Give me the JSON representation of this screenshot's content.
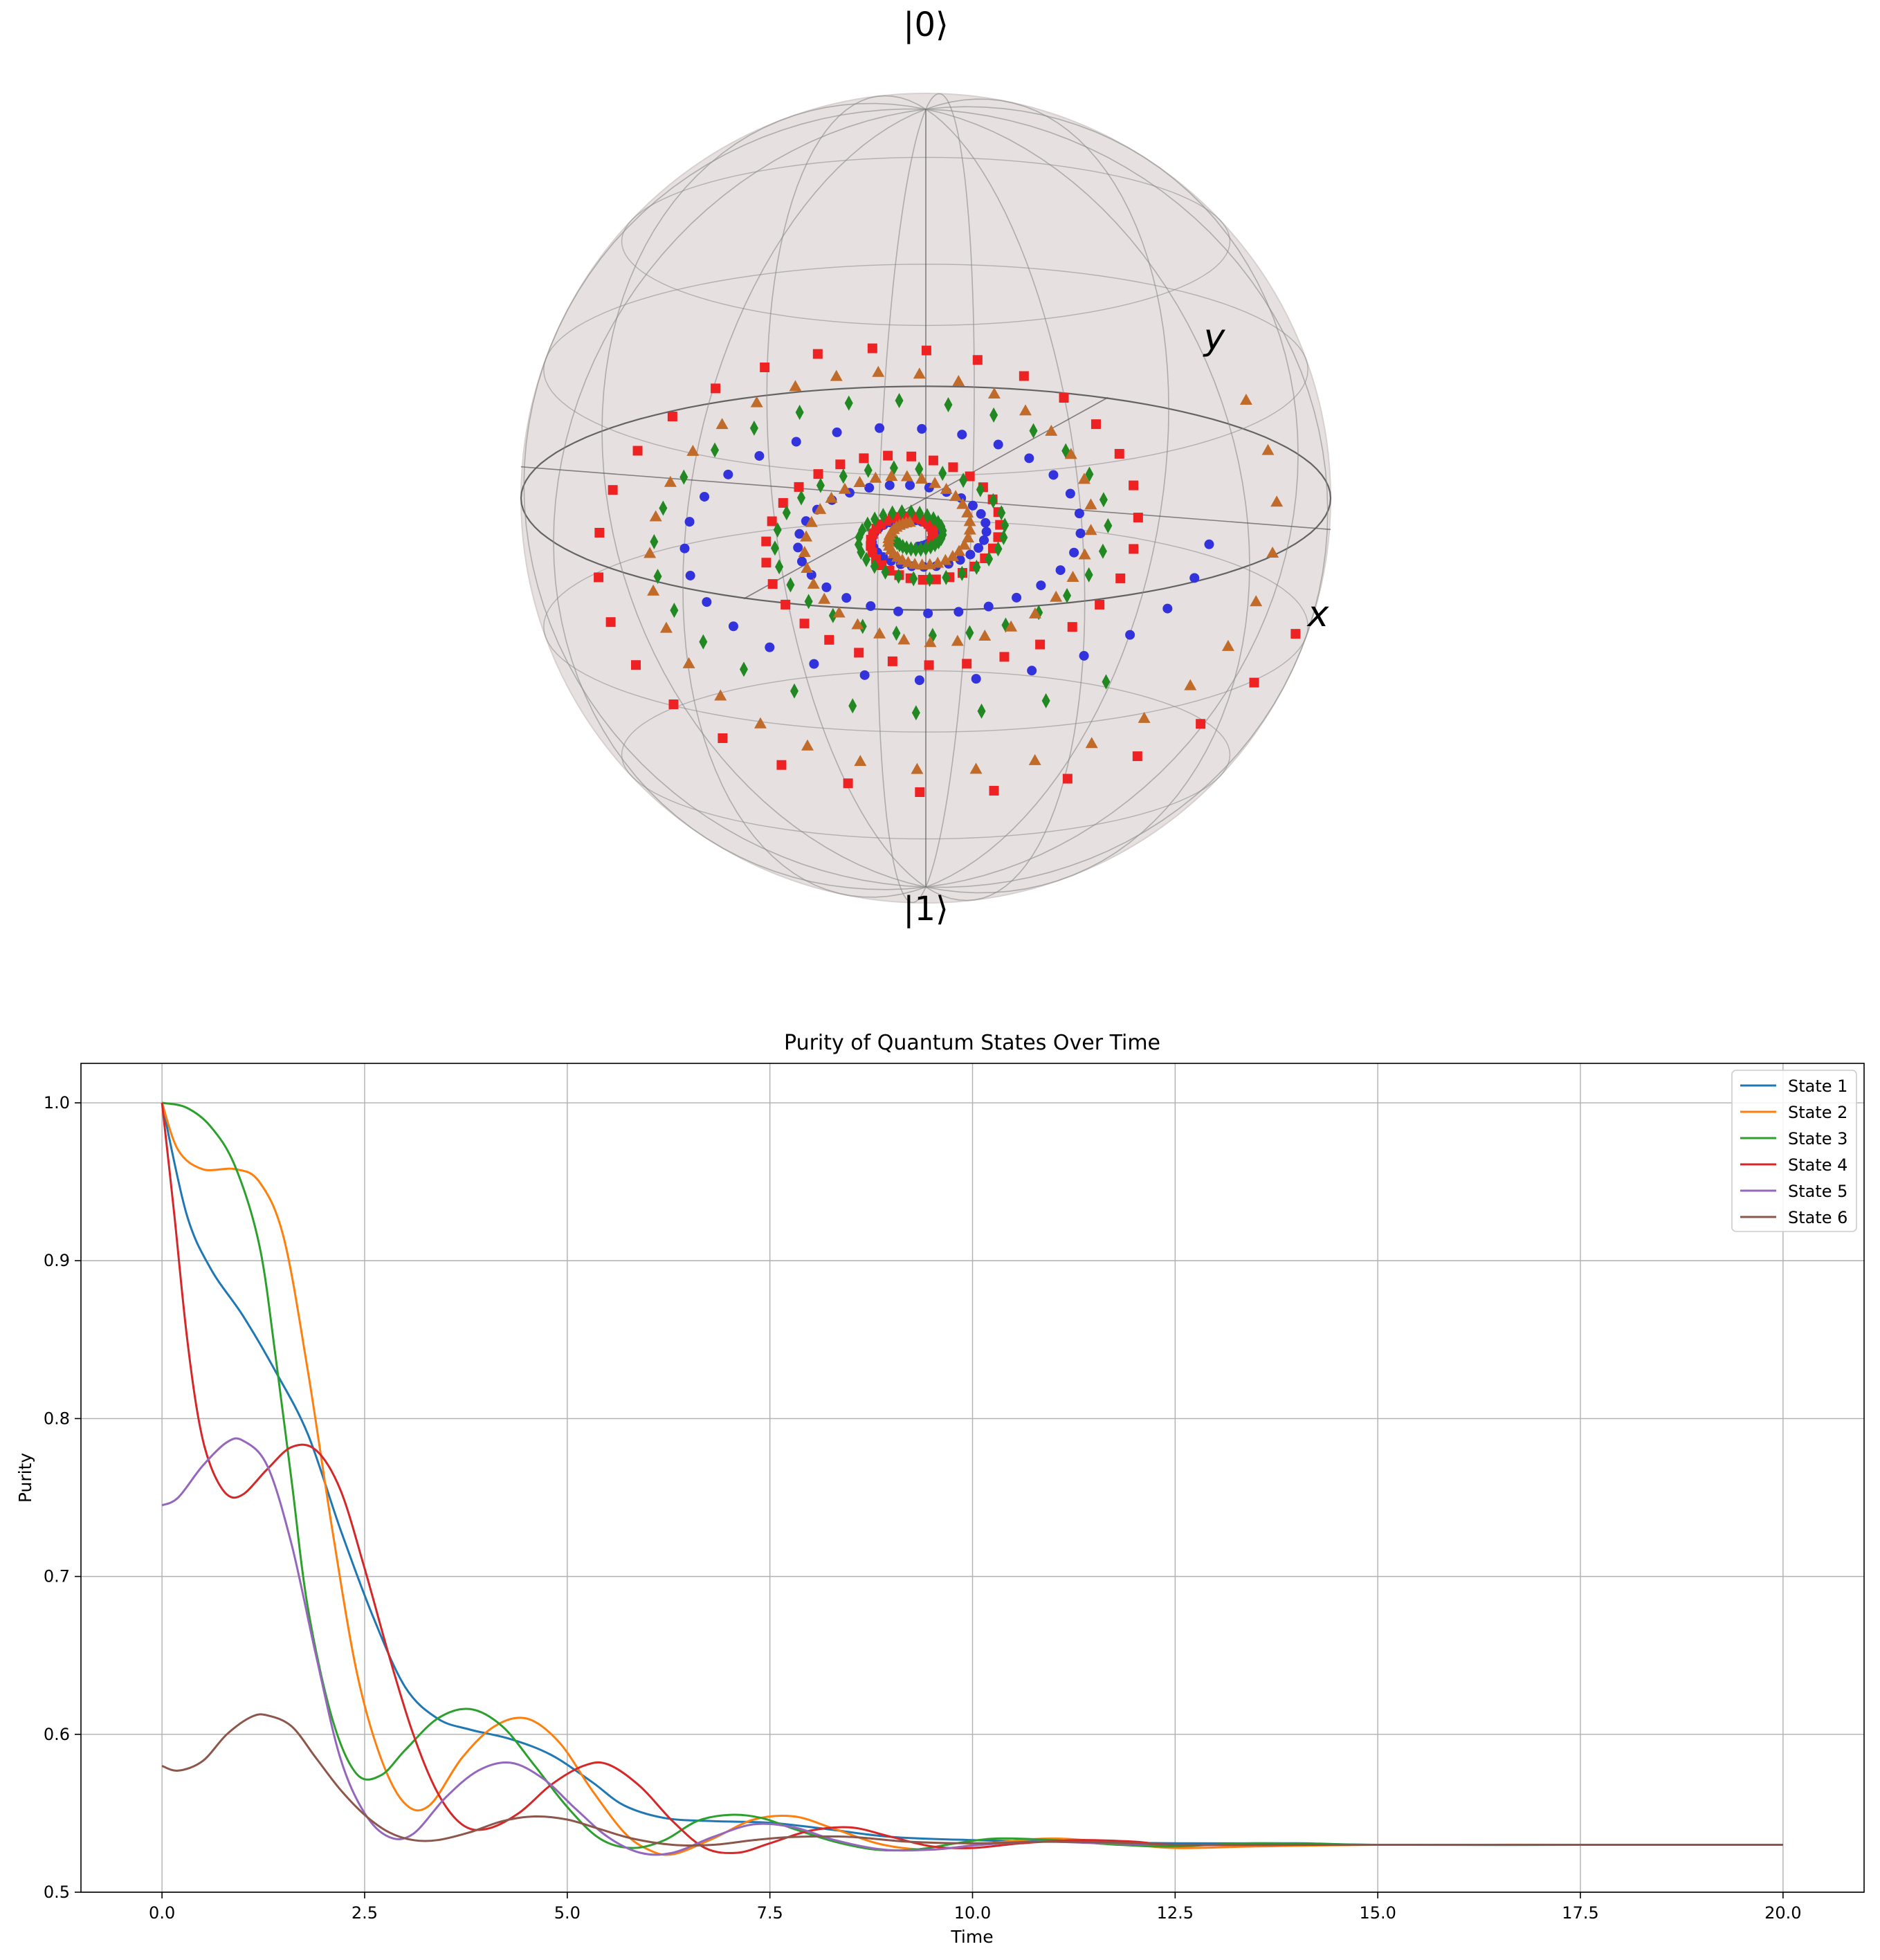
{
  "colors": {
    "sphere_fill": "#e2dada",
    "sphere_wire": "#888888",
    "frame": "#555555",
    "axis_line": "#000000",
    "grid": "#b0b0b0",
    "marker_blue": "#3333dd",
    "marker_red": "#ee2222",
    "marker_green": "#228822",
    "marker_orange": "#c06b2a"
  },
  "bloch": {
    "label_top": "|0⟩",
    "label_bottom": "|1⟩",
    "label_x": "x",
    "label_y": "y",
    "marker_series": [
      {
        "marker": "circle",
        "color": "#3333dd"
      },
      {
        "marker": "square",
        "color": "#ee2222"
      },
      {
        "marker": "diamond",
        "color": "#228822"
      },
      {
        "marker": "triangle",
        "color": "#c06b2a"
      }
    ]
  },
  "chart_data": {
    "type": "line",
    "title": "Purity of Quantum States Over Time",
    "xlabel": "Time",
    "ylabel": "Purity",
    "xlim": [
      -1.0,
      21.0
    ],
    "ylim": [
      0.5,
      1.025
    ],
    "xticks": [
      0.0,
      2.5,
      5.0,
      7.5,
      10.0,
      12.5,
      15.0,
      17.5,
      20.0
    ],
    "xtick_labels": [
      "0.0",
      "2.5",
      "5.0",
      "7.5",
      "10.0",
      "12.5",
      "15.0",
      "17.5",
      "20.0"
    ],
    "yticks": [
      0.5,
      0.6,
      0.7,
      0.8,
      0.9,
      1.0
    ],
    "ytick_labels": [
      "0.5",
      "0.6",
      "0.7",
      "0.8",
      "0.9",
      "1.0"
    ],
    "grid": true,
    "legend_position": "top-right",
    "series": [
      {
        "name": "State 1",
        "color": "#1f77b4",
        "points": [
          [
            0,
            1.0
          ],
          [
            0.3,
            0.93
          ],
          [
            0.6,
            0.895
          ],
          [
            1.0,
            0.865
          ],
          [
            1.4,
            0.83
          ],
          [
            1.8,
            0.79
          ],
          [
            2.2,
            0.73
          ],
          [
            2.6,
            0.675
          ],
          [
            3.0,
            0.63
          ],
          [
            3.4,
            0.61
          ],
          [
            3.8,
            0.603
          ],
          [
            4.3,
            0.597
          ],
          [
            4.8,
            0.587
          ],
          [
            5.3,
            0.57
          ],
          [
            5.7,
            0.555
          ],
          [
            6.2,
            0.547
          ],
          [
            6.8,
            0.545
          ],
          [
            7.5,
            0.544
          ],
          [
            8.2,
            0.54
          ],
          [
            9.0,
            0.535
          ],
          [
            10.0,
            0.533
          ],
          [
            11.0,
            0.532
          ],
          [
            12.5,
            0.531
          ],
          [
            14.0,
            0.531
          ],
          [
            15.0,
            0.53
          ],
          [
            17.5,
            0.53
          ],
          [
            20.0,
            0.53
          ]
        ]
      },
      {
        "name": "State 2",
        "color": "#ff7f0e",
        "points": [
          [
            0,
            1.0
          ],
          [
            0.2,
            0.97
          ],
          [
            0.5,
            0.958
          ],
          [
            0.9,
            0.958
          ],
          [
            1.2,
            0.95
          ],
          [
            1.5,
            0.915
          ],
          [
            1.8,
            0.83
          ],
          [
            2.1,
            0.73
          ],
          [
            2.4,
            0.64
          ],
          [
            2.7,
            0.585
          ],
          [
            3.0,
            0.556
          ],
          [
            3.3,
            0.555
          ],
          [
            3.7,
            0.585
          ],
          [
            4.1,
            0.605
          ],
          [
            4.5,
            0.61
          ],
          [
            4.9,
            0.595
          ],
          [
            5.3,
            0.565
          ],
          [
            5.7,
            0.538
          ],
          [
            6.0,
            0.527
          ],
          [
            6.3,
            0.524
          ],
          [
            6.8,
            0.534
          ],
          [
            7.3,
            0.546
          ],
          [
            7.8,
            0.548
          ],
          [
            8.3,
            0.54
          ],
          [
            8.9,
            0.53
          ],
          [
            9.5,
            0.527
          ],
          [
            10.2,
            0.531
          ],
          [
            11.0,
            0.534
          ],
          [
            11.8,
            0.531
          ],
          [
            12.5,
            0.528
          ],
          [
            13.5,
            0.529
          ],
          [
            15.0,
            0.53
          ],
          [
            17.5,
            0.53
          ],
          [
            20.0,
            0.53
          ]
        ]
      },
      {
        "name": "State 3",
        "color": "#2ca02c",
        "points": [
          [
            0,
            1.0
          ],
          [
            0.3,
            0.997
          ],
          [
            0.6,
            0.985
          ],
          [
            0.9,
            0.96
          ],
          [
            1.2,
            0.91
          ],
          [
            1.4,
            0.84
          ],
          [
            1.6,
            0.76
          ],
          [
            1.8,
            0.68
          ],
          [
            2.1,
            0.61
          ],
          [
            2.4,
            0.575
          ],
          [
            2.7,
            0.574
          ],
          [
            3.0,
            0.59
          ],
          [
            3.4,
            0.61
          ],
          [
            3.8,
            0.616
          ],
          [
            4.2,
            0.605
          ],
          [
            4.6,
            0.58
          ],
          [
            5.0,
            0.554
          ],
          [
            5.4,
            0.534
          ],
          [
            5.8,
            0.528
          ],
          [
            6.2,
            0.533
          ],
          [
            6.6,
            0.545
          ],
          [
            7.0,
            0.549
          ],
          [
            7.4,
            0.547
          ],
          [
            7.8,
            0.54
          ],
          [
            8.3,
            0.532
          ],
          [
            8.8,
            0.527
          ],
          [
            9.3,
            0.527
          ],
          [
            9.8,
            0.531
          ],
          [
            10.3,
            0.534
          ],
          [
            11.0,
            0.533
          ],
          [
            11.8,
            0.53
          ],
          [
            12.5,
            0.529
          ],
          [
            13.5,
            0.531
          ],
          [
            15.0,
            0.53
          ],
          [
            17.5,
            0.53
          ],
          [
            20.0,
            0.53
          ]
        ]
      },
      {
        "name": "State 4",
        "color": "#d62728",
        "points": [
          [
            0,
            1.0
          ],
          [
            0.15,
            0.93
          ],
          [
            0.3,
            0.855
          ],
          [
            0.45,
            0.8
          ],
          [
            0.6,
            0.77
          ],
          [
            0.8,
            0.752
          ],
          [
            1.0,
            0.752
          ],
          [
            1.3,
            0.768
          ],
          [
            1.6,
            0.782
          ],
          [
            1.9,
            0.78
          ],
          [
            2.2,
            0.755
          ],
          [
            2.5,
            0.705
          ],
          [
            2.8,
            0.65
          ],
          [
            3.1,
            0.6
          ],
          [
            3.4,
            0.563
          ],
          [
            3.7,
            0.543
          ],
          [
            4.0,
            0.54
          ],
          [
            4.4,
            0.55
          ],
          [
            4.8,
            0.568
          ],
          [
            5.2,
            0.58
          ],
          [
            5.5,
            0.581
          ],
          [
            5.9,
            0.567
          ],
          [
            6.3,
            0.545
          ],
          [
            6.7,
            0.528
          ],
          [
            7.1,
            0.525
          ],
          [
            7.5,
            0.531
          ],
          [
            8.0,
            0.539
          ],
          [
            8.5,
            0.541
          ],
          [
            9.0,
            0.535
          ],
          [
            9.5,
            0.529
          ],
          [
            10.0,
            0.528
          ],
          [
            10.6,
            0.531
          ],
          [
            11.3,
            0.533
          ],
          [
            12.0,
            0.532
          ],
          [
            12.5,
            0.53
          ],
          [
            14.0,
            0.53
          ],
          [
            15.0,
            0.53
          ],
          [
            17.5,
            0.53
          ],
          [
            20.0,
            0.53
          ]
        ]
      },
      {
        "name": "State 5",
        "color": "#9467bd",
        "points": [
          [
            0,
            0.745
          ],
          [
            0.2,
            0.75
          ],
          [
            0.5,
            0.77
          ],
          [
            0.8,
            0.785
          ],
          [
            1.0,
            0.786
          ],
          [
            1.3,
            0.77
          ],
          [
            1.6,
            0.72
          ],
          [
            1.9,
            0.65
          ],
          [
            2.2,
            0.585
          ],
          [
            2.5,
            0.55
          ],
          [
            2.8,
            0.535
          ],
          [
            3.1,
            0.537
          ],
          [
            3.5,
            0.56
          ],
          [
            3.9,
            0.577
          ],
          [
            4.3,
            0.582
          ],
          [
            4.7,
            0.572
          ],
          [
            5.1,
            0.553
          ],
          [
            5.5,
            0.535
          ],
          [
            5.9,
            0.525
          ],
          [
            6.3,
            0.525
          ],
          [
            6.8,
            0.535
          ],
          [
            7.3,
            0.543
          ],
          [
            7.8,
            0.541
          ],
          [
            8.3,
            0.533
          ],
          [
            8.9,
            0.527
          ],
          [
            9.5,
            0.527
          ],
          [
            10.1,
            0.53
          ],
          [
            10.8,
            0.532
          ],
          [
            11.6,
            0.531
          ],
          [
            12.5,
            0.53
          ],
          [
            14.0,
            0.53
          ],
          [
            15.0,
            0.53
          ],
          [
            17.5,
            0.53
          ],
          [
            20.0,
            0.53
          ]
        ]
      },
      {
        "name": "State 6",
        "color": "#8c564b",
        "points": [
          [
            0,
            0.58
          ],
          [
            0.2,
            0.577
          ],
          [
            0.5,
            0.583
          ],
          [
            0.8,
            0.6
          ],
          [
            1.1,
            0.611
          ],
          [
            1.3,
            0.612
          ],
          [
            1.6,
            0.605
          ],
          [
            1.9,
            0.585
          ],
          [
            2.2,
            0.565
          ],
          [
            2.5,
            0.549
          ],
          [
            2.8,
            0.538
          ],
          [
            3.1,
            0.533
          ],
          [
            3.4,
            0.533
          ],
          [
            3.8,
            0.538
          ],
          [
            4.2,
            0.545
          ],
          [
            4.6,
            0.548
          ],
          [
            5.0,
            0.546
          ],
          [
            5.4,
            0.54
          ],
          [
            5.8,
            0.534
          ],
          [
            6.3,
            0.53
          ],
          [
            6.8,
            0.53
          ],
          [
            7.3,
            0.533
          ],
          [
            7.8,
            0.535
          ],
          [
            8.5,
            0.535
          ],
          [
            9.2,
            0.532
          ],
          [
            10.0,
            0.531
          ],
          [
            11.0,
            0.532
          ],
          [
            12.0,
            0.531
          ],
          [
            12.5,
            0.53
          ],
          [
            14.0,
            0.53
          ],
          [
            15.0,
            0.53
          ],
          [
            17.5,
            0.53
          ],
          [
            20.0,
            0.53
          ]
        ]
      }
    ]
  }
}
